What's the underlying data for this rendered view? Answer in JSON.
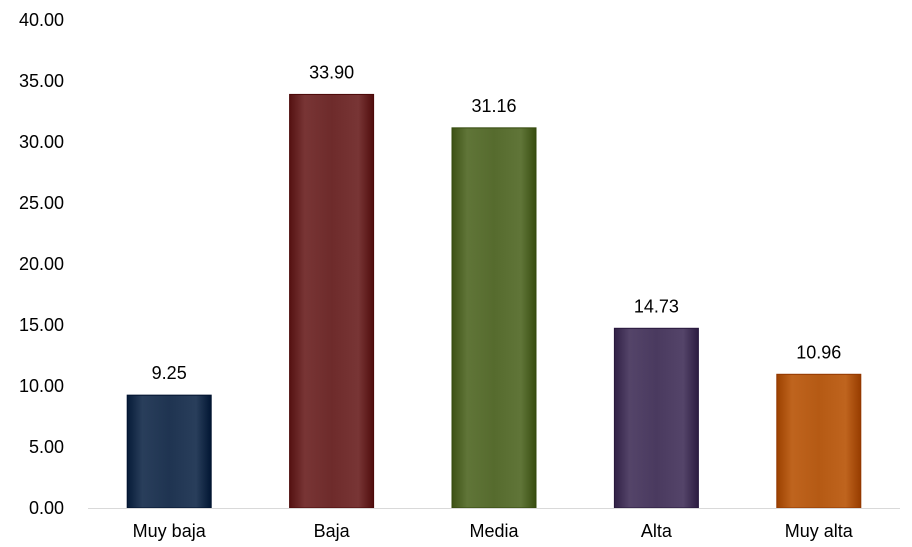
{
  "chart_data": {
    "type": "bar",
    "categories": [
      "Muy baja",
      "Baja",
      "Media",
      "Alta",
      "Muy alta"
    ],
    "values": [
      9.25,
      33.9,
      31.16,
      14.73,
      10.96
    ],
    "data_labels": [
      "9.25",
      "33.90",
      "31.16",
      "14.73",
      "10.96"
    ],
    "colors": [
      "#1f3451",
      "#6e2b2b",
      "#566b2e",
      "#4a3a5f",
      "#b55a14"
    ],
    "title": "",
    "xlabel": "",
    "ylabel": "",
    "ylim": [
      0,
      40
    ],
    "yticks": [
      0,
      5,
      10,
      15,
      20,
      25,
      30,
      35,
      40
    ],
    "ytick_labels": [
      "0.00",
      "5.00",
      "10.00",
      "15.00",
      "20.00",
      "25.00",
      "30.00",
      "35.00",
      "40.00"
    ],
    "grid": false,
    "legend": "none"
  }
}
